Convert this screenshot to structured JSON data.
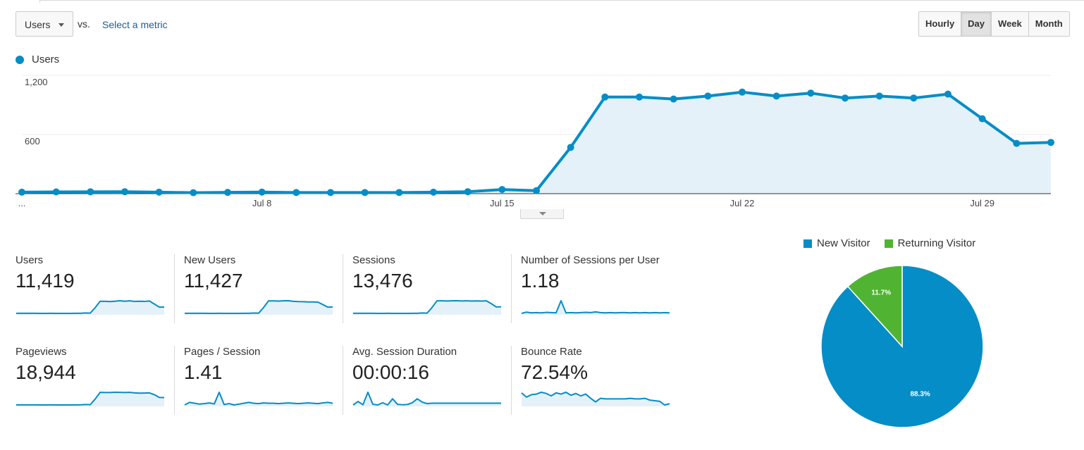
{
  "toolbar": {
    "metric_dropdown_label": "Users",
    "vs_text": "vs.",
    "select_metric_link": "Select a metric",
    "granularity": [
      {
        "label": "Hourly",
        "active": false
      },
      {
        "label": "Day",
        "active": true
      },
      {
        "label": "Week",
        "active": false
      },
      {
        "label": "Month",
        "active": false
      }
    ]
  },
  "chart_data": [
    {
      "type": "area",
      "series": [
        {
          "name": "Users",
          "color": "#058dc7",
          "values": [
            15,
            18,
            19,
            20,
            15,
            10,
            13,
            16,
            12,
            12,
            12,
            12,
            15,
            20,
            42,
            30,
            470,
            980,
            980,
            960,
            990,
            1030,
            990,
            1020,
            970,
            990,
            970,
            1010,
            760,
            510,
            520
          ]
        }
      ],
      "x_tick_labels": [
        {
          "index": 0,
          "label": "..."
        },
        {
          "index": 7,
          "label": "Jul 8"
        },
        {
          "index": 14,
          "label": "Jul 15"
        },
        {
          "index": 21,
          "label": "Jul 22"
        },
        {
          "index": 28,
          "label": "Jul 29"
        }
      ],
      "y_ticks": [
        {
          "value": 600,
          "label": "600"
        },
        {
          "value": 1200,
          "label": "1,200"
        }
      ],
      "ylim": [
        0,
        1200
      ],
      "grid": true,
      "legend": "top-left"
    },
    {
      "type": "pie",
      "categories": [
        "New Visitor",
        "Returning Visitor"
      ],
      "values": [
        88.3,
        11.7
      ],
      "labels": [
        "88.3%",
        "11.7%"
      ],
      "colors": [
        "#058dc7",
        "#50b432"
      ],
      "legend": "top"
    }
  ],
  "scorecards": [
    {
      "label": "Users",
      "value": "11,419",
      "spark": [
        15,
        18,
        19,
        20,
        15,
        10,
        13,
        16,
        12,
        12,
        12,
        12,
        15,
        20,
        42,
        30,
        470,
        980,
        980,
        960,
        990,
        1030,
        990,
        1020,
        970,
        990,
        970,
        1010,
        760,
        510,
        520
      ]
    },
    {
      "label": "New Users",
      "value": "11,427",
      "spark": [
        15,
        18,
        19,
        20,
        15,
        10,
        13,
        16,
        12,
        12,
        12,
        12,
        15,
        20,
        40,
        28,
        470,
        985,
        985,
        975,
        990,
        1000,
        950,
        930,
        925,
        905,
        905,
        890,
        700,
        500,
        510
      ]
    },
    {
      "label": "Sessions",
      "value": "13,476",
      "spark": [
        15,
        18,
        19,
        20,
        15,
        10,
        13,
        16,
        12,
        12,
        12,
        12,
        15,
        20,
        42,
        30,
        480,
        1000,
        1000,
        990,
        1000,
        1010,
        990,
        1000,
        980,
        995,
        985,
        1005,
        780,
        520,
        530
      ]
    },
    {
      "label": "Number of Sessions per User",
      "value": "1.18",
      "spark": [
        1.1,
        1.15,
        1.12,
        1.13,
        1.12,
        1.14,
        1.13,
        1.12,
        1.6,
        1.12,
        1.13,
        1.12,
        1.13,
        1.14,
        1.13,
        1.16,
        1.13,
        1.12,
        1.13,
        1.12,
        1.13,
        1.13,
        1.12,
        1.13,
        1.12,
        1.13,
        1.12,
        1.13,
        1.12,
        1.13,
        1.12
      ]
    },
    {
      "label": "Pageviews",
      "value": "18,944",
      "spark": [
        15,
        18,
        19,
        20,
        15,
        10,
        13,
        16,
        12,
        12,
        12,
        12,
        15,
        20,
        42,
        30,
        470,
        1000,
        990,
        990,
        1010,
        1000,
        990,
        1005,
        960,
        940,
        950,
        960,
        820,
        600,
        590
      ]
    },
    {
      "label": "Pages / Session",
      "value": "1.41",
      "spark": [
        1.3,
        1.45,
        1.4,
        1.35,
        1.38,
        1.42,
        1.36,
        2.05,
        1.32,
        1.38,
        1.3,
        1.35,
        1.4,
        1.45,
        1.4,
        1.38,
        1.42,
        1.4,
        1.4,
        1.38,
        1.4,
        1.42,
        1.4,
        1.38,
        1.4,
        1.42,
        1.4,
        1.38,
        1.42,
        1.45,
        1.4
      ]
    },
    {
      "label": "Avg. Session Duration",
      "value": "00:00:16",
      "spark": [
        2,
        18,
        3,
        60,
        5,
        2,
        12,
        2,
        30,
        5,
        3,
        4,
        12,
        30,
        15,
        8,
        10,
        10,
        10,
        10,
        10,
        10,
        10,
        10,
        10,
        10,
        10,
        10,
        10,
        10,
        10
      ]
    },
    {
      "label": "Bounce Rate",
      "value": "72.54%",
      "spark": [
        85,
        78,
        82,
        83,
        86,
        84,
        80,
        85,
        83,
        86,
        81,
        84,
        80,
        83,
        76,
        70,
        76,
        75,
        75,
        75,
        75,
        75,
        76,
        75,
        75,
        76,
        73,
        72,
        71,
        65,
        67
      ]
    }
  ]
}
